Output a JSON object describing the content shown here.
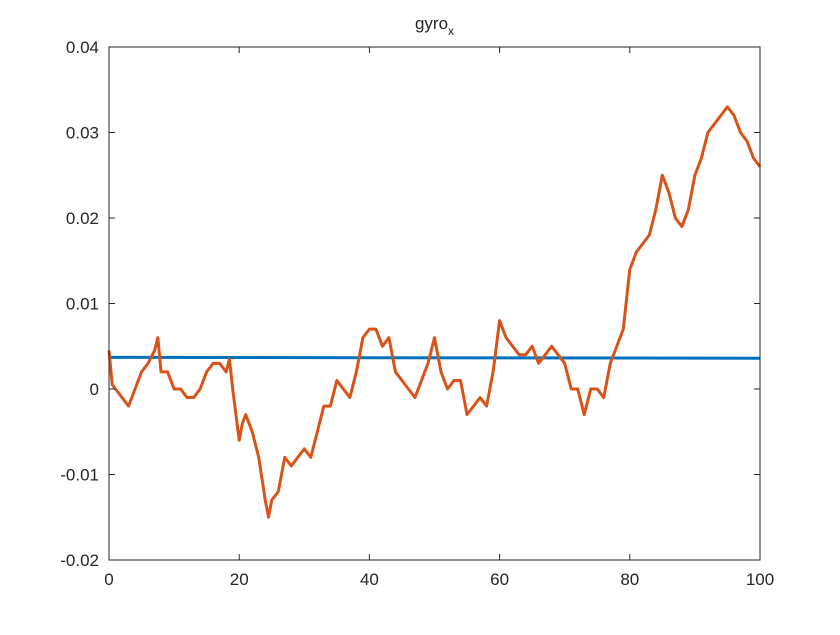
{
  "chart_data": {
    "type": "line",
    "title": {
      "base": "gyro",
      "subscript": "x"
    },
    "xlabel": "",
    "ylabel": "",
    "xlim": [
      0,
      100
    ],
    "ylim": [
      -0.02,
      0.04
    ],
    "xticks": [
      0,
      20,
      40,
      60,
      80,
      100
    ],
    "yticks": [
      -0.02,
      -0.01,
      0,
      0.01,
      0.02,
      0.03,
      0.04
    ],
    "xtick_labels": [
      "0",
      "20",
      "40",
      "60",
      "80",
      "100"
    ],
    "ytick_labels": [
      "-0.02",
      "-0.01",
      "0",
      "0.01",
      "0.02",
      "0.03",
      "0.04"
    ],
    "grid": false,
    "series": [
      {
        "color": "#0072BD",
        "x": [
          0,
          100
        ],
        "y": [
          0.0037,
          0.0036
        ]
      },
      {
        "color": "#D95319",
        "x": [
          0,
          0.5,
          1,
          2,
          3,
          4,
          5,
          6,
          7,
          7.5,
          8,
          9,
          10,
          11,
          12,
          13,
          14,
          15,
          16,
          17,
          18,
          18.5,
          19,
          20,
          20.5,
          21,
          22,
          23,
          24,
          24.5,
          25,
          26,
          27,
          28,
          29,
          30,
          31,
          32,
          33,
          34,
          35,
          36,
          37,
          38,
          39,
          40,
          41,
          42,
          43,
          44,
          45,
          46,
          47,
          48,
          49,
          50,
          51,
          52,
          53,
          54,
          55,
          56,
          57,
          58,
          59,
          60,
          61,
          62,
          63,
          64,
          65,
          66,
          67,
          68,
          69,
          70,
          71,
          72,
          73,
          74,
          75,
          76,
          77,
          78,
          79,
          80,
          81,
          82,
          83,
          84,
          85,
          86,
          87,
          88,
          89,
          90,
          91,
          92,
          93,
          94,
          95,
          96,
          97,
          98,
          99,
          100
        ],
        "y": [
          0.0045,
          0.0005,
          0.0,
          -0.001,
          -0.002,
          0.0,
          0.002,
          0.003,
          0.0045,
          0.006,
          0.002,
          0.002,
          0.0,
          0.0,
          -0.001,
          -0.001,
          0.0,
          0.002,
          0.003,
          0.003,
          0.002,
          0.0035,
          0.0,
          -0.006,
          -0.004,
          -0.003,
          -0.005,
          -0.008,
          -0.013,
          -0.015,
          -0.013,
          -0.012,
          -0.008,
          -0.009,
          -0.008,
          -0.007,
          -0.008,
          -0.005,
          -0.002,
          -0.002,
          0.001,
          0.0,
          -0.001,
          0.002,
          0.006,
          0.007,
          0.007,
          0.005,
          0.006,
          0.002,
          0.001,
          0.0,
          -0.001,
          0.001,
          0.003,
          0.006,
          0.002,
          0.0,
          0.001,
          0.001,
          -0.003,
          -0.002,
          -0.001,
          -0.002,
          0.002,
          0.008,
          0.006,
          0.005,
          0.004,
          0.004,
          0.005,
          0.003,
          0.004,
          0.005,
          0.004,
          0.003,
          0.0,
          0.0,
          -0.003,
          0.0,
          0.0,
          -0.001,
          0.003,
          0.005,
          0.007,
          0.014,
          0.016,
          0.017,
          0.018,
          0.021,
          0.025,
          0.023,
          0.02,
          0.019,
          0.021,
          0.025,
          0.027,
          0.03,
          0.031,
          0.032,
          0.033,
          0.032,
          0.03,
          0.029,
          0.027,
          0.026
        ]
      }
    ]
  }
}
